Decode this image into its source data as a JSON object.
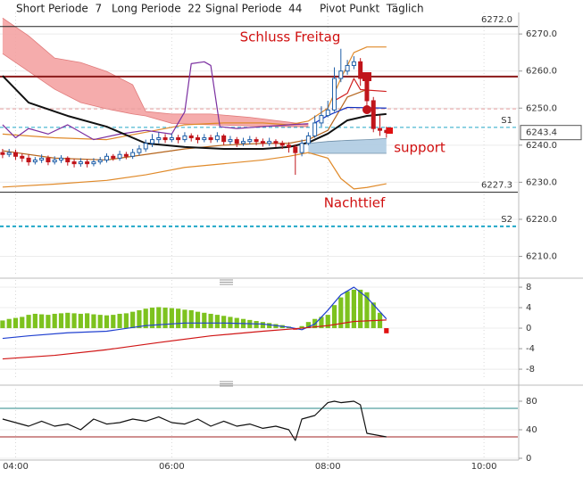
{
  "header": [
    "Short Periode  7",
    "Long Periode  22",
    "Signal Periode  44",
    "Pivot Punkt  Täglich"
  ],
  "chart_data": [
    {
      "type": "candlestick",
      "xlim": [
        "03:48",
        "10:26"
      ],
      "ylim": [
        6204.6,
        6275.8
      ],
      "grid": true,
      "xticks": [
        "04:00",
        "06:00",
        "08:00",
        "10:00"
      ],
      "yticks": [
        {
          "value": 6270,
          "label": "6270.0"
        },
        {
          "value": 6260,
          "label": "6260.0"
        },
        {
          "value": 6250,
          "label": "6250.0"
        },
        {
          "value": 6240,
          "label": "6240.0"
        },
        {
          "value": 6230,
          "label": "6230.0"
        },
        {
          "value": 6220,
          "label": "6220.0"
        },
        {
          "value": 6210,
          "label": "6210.0"
        }
      ],
      "up_color": "#1f5fa8",
      "down_color": "#c0151b",
      "x": [
        "03:50",
        "03:55",
        "04:00",
        "04:05",
        "04:10",
        "04:15",
        "04:20",
        "04:25",
        "04:30",
        "04:35",
        "04:40",
        "04:45",
        "04:50",
        "04:55",
        "05:00",
        "05:05",
        "05:10",
        "05:15",
        "05:20",
        "05:25",
        "05:30",
        "05:35",
        "05:40",
        "05:45",
        "05:50",
        "05:55",
        "06:00",
        "06:05",
        "06:10",
        "06:15",
        "06:20",
        "06:25",
        "06:30",
        "06:35",
        "06:40",
        "06:45",
        "06:50",
        "06:55",
        "07:00",
        "07:05",
        "07:10",
        "07:15",
        "07:20",
        "07:25",
        "07:30",
        "07:35",
        "07:40",
        "07:45",
        "07:50",
        "07:55",
        "08:00",
        "08:05",
        "08:10",
        "08:15",
        "08:20",
        "08:25",
        "08:30",
        "08:35",
        "08:40",
        "08:45"
      ],
      "open": [
        6238.0,
        6237.5,
        6238.0,
        6237.0,
        6236.5,
        6235.5,
        6236.0,
        6236.5,
        6235.5,
        6236.0,
        6236.5,
        6235.5,
        6235.0,
        6235.5,
        6235.0,
        6235.5,
        6236.0,
        6237.0,
        6236.5,
        6237.5,
        6237.0,
        6238.0,
        6239.0,
        6240.5,
        6241.5,
        6242.0,
        6241.5,
        6242.0,
        6241.5,
        6242.5,
        6242.0,
        6241.5,
        6242.0,
        6241.5,
        6242.5,
        6241.0,
        6241.5,
        6240.5,
        6241.0,
        6241.5,
        6241.0,
        6240.5,
        6241.0,
        6240.5,
        6240.0,
        6239.5,
        6238.0,
        6240.5,
        6242.5,
        6246.0,
        6248.0,
        6249.5,
        6258.0,
        6260.0,
        6261.5,
        6262.5,
        6258.0,
        6252.0,
        6244.5,
        6244.0
      ],
      "high": [
        6239.0,
        6239.0,
        6238.8,
        6237.8,
        6237.5,
        6236.8,
        6237.5,
        6237.2,
        6237.0,
        6237.3,
        6237.0,
        6236.3,
        6236.5,
        6236.2,
        6236.5,
        6236.8,
        6237.8,
        6237.6,
        6238.5,
        6238.2,
        6239.0,
        6240.0,
        6241.5,
        6243.0,
        6243.5,
        6243.0,
        6243.2,
        6242.8,
        6243.5,
        6243.2,
        6242.8,
        6243.0,
        6242.8,
        6243.5,
        6243.0,
        6242.5,
        6242.2,
        6242.0,
        6242.5,
        6242.2,
        6241.8,
        6242.0,
        6241.6,
        6241.2,
        6240.8,
        6240.2,
        6241.5,
        6243.5,
        6248.0,
        6250.5,
        6252.0,
        6261.0,
        6266.0,
        6263.0,
        6264.0,
        6263.5,
        6259.0,
        6253.0,
        6248.0,
        6245.0
      ],
      "low": [
        6236.5,
        6236.8,
        6236.0,
        6235.5,
        6234.5,
        6234.8,
        6235.2,
        6234.6,
        6234.8,
        6235.2,
        6234.5,
        6234.0,
        6234.2,
        6234.0,
        6234.3,
        6234.8,
        6235.3,
        6235.8,
        6235.8,
        6236.2,
        6236.3,
        6237.2,
        6238.2,
        6239.5,
        6240.5,
        6240.6,
        6240.8,
        6240.5,
        6240.8,
        6241.0,
        6240.5,
        6240.8,
        6240.6,
        6240.8,
        6240.0,
        6240.2,
        6239.5,
        6239.8,
        6240.2,
        6240.0,
        6239.6,
        6239.8,
        6239.5,
        6239.0,
        6238.0,
        6232.0,
        6237.0,
        6240.0,
        6242.0,
        6245.0,
        6247.5,
        6249.0,
        6257.0,
        6259.0,
        6260.5,
        6256.0,
        6250.0,
        6243.5,
        6242.5,
        6242.0
      ],
      "close": [
        6237.5,
        6238.0,
        6237.0,
        6236.5,
        6235.5,
        6236.0,
        6236.5,
        6235.5,
        6236.0,
        6236.5,
        6235.5,
        6235.0,
        6235.5,
        6235.0,
        6235.5,
        6236.0,
        6237.0,
        6236.5,
        6237.5,
        6237.0,
        6238.0,
        6239.0,
        6240.5,
        6241.5,
        6242.0,
        6241.5,
        6242.0,
        6241.5,
        6242.5,
        6242.0,
        6241.5,
        6242.0,
        6241.5,
        6242.5,
        6241.0,
        6241.5,
        6240.5,
        6241.0,
        6241.5,
        6241.0,
        6240.5,
        6241.0,
        6240.5,
        6240.0,
        6239.5,
        6238.0,
        6240.5,
        6242.5,
        6246.0,
        6248.0,
        6249.5,
        6258.0,
        6260.0,
        6261.5,
        6262.5,
        6258.0,
        6252.0,
        6244.5,
        6244.0,
        6243.4
      ],
      "clouds": [
        {
          "color": "#f4a3a3",
          "edge_color": "#e07a7a",
          "x": [
            "03:50",
            "04:10",
            "04:30",
            "04:50",
            "05:10",
            "05:30",
            "05:40",
            "06:00",
            "06:30",
            "07:00",
            "07:30",
            "07:45"
          ],
          "upper": [
            6274.3,
            6269.5,
            6263.5,
            6262.3,
            6259.9,
            6256.3,
            6249.1,
            6248.4,
            6248.4,
            6247.5,
            6246.2,
            6245.5
          ],
          "lower": [
            6264.7,
            6259.9,
            6255.1,
            6251.5,
            6249.8,
            6248.4,
            6247.9,
            6245.9,
            6245.5,
            6245.2,
            6245.0,
            6245.0
          ]
        },
        {
          "color": "#aecbe2",
          "edge_color": "#6f8fa8",
          "x": [
            "07:45",
            "08:00",
            "08:15",
            "08:30",
            "08:45"
          ],
          "upper": [
            6240.5,
            6241.0,
            6241.3,
            6241.5,
            6241.8
          ],
          "lower": [
            6237.8,
            6237.8,
            6237.8,
            6237.8,
            6237.8
          ]
        }
      ],
      "series": [
        {
          "color": "#e08a2a",
          "x": [
            "03:50",
            "04:30",
            "05:10",
            "05:40",
            "06:10",
            "06:40",
            "07:10",
            "07:30",
            "07:45",
            "08:00",
            "08:10",
            "08:20",
            "08:30",
            "08:45"
          ],
          "values": [
            6243.0,
            6242.0,
            6241.5,
            6243.5,
            6245.5,
            6246.0,
            6246.0,
            6245.5,
            6246.5,
            6250.0,
            6258.0,
            6265.0,
            6266.5,
            6266.5
          ]
        },
        {
          "color": "#e08a2a",
          "x": [
            "03:50",
            "04:30",
            "05:10",
            "05:40",
            "06:10",
            "06:40",
            "07:10",
            "07:30",
            "07:45",
            "08:00",
            "08:10",
            "08:20",
            "08:30",
            "08:45"
          ],
          "values": [
            6228.7,
            6229.5,
            6230.5,
            6232.0,
            6234.0,
            6235.0,
            6236.0,
            6237.0,
            6238.0,
            6236.5,
            6231.0,
            6228.2,
            6228.6,
            6229.6
          ]
        },
        {
          "color": "#b5651d",
          "x": [
            "03:50",
            "04:30",
            "05:10",
            "05:40",
            "06:10",
            "06:40",
            "07:10",
            "07:30",
            "07:45",
            "08:00",
            "08:15",
            "08:30"
          ],
          "values": [
            6238.5,
            6236.5,
            6236.0,
            6237.5,
            6239.0,
            6240.0,
            6240.5,
            6240.5,
            6241.5,
            6244.0,
            6253.0,
            6255.0
          ]
        },
        {
          "color": "#7b2fa0",
          "x": [
            "03:50",
            "04:00",
            "04:10",
            "04:25",
            "04:40",
            "05:00",
            "05:20",
            "05:40",
            "06:00",
            "06:10",
            "06:15",
            "06:25",
            "06:30",
            "06:37",
            "06:50",
            "07:10",
            "07:30",
            "07:45"
          ],
          "values": [
            6245.5,
            6242.0,
            6244.5,
            6243.0,
            6245.5,
            6241.5,
            6243.0,
            6244.0,
            6243.0,
            6249.0,
            6262.0,
            6262.5,
            6261.5,
            6245.0,
            6244.5,
            6245.0,
            6245.5,
            6245.8
          ]
        },
        {
          "color": "#d02020",
          "x": [
            "08:05",
            "08:15",
            "08:20",
            "08:25",
            "08:45"
          ],
          "values": [
            6252.0,
            6254.0,
            6258.0,
            6255.0,
            6254.5
          ]
        },
        {
          "color": "#1030c0",
          "x": [
            "07:50",
            "08:00",
            "08:15",
            "08:45"
          ],
          "values": [
            6246.0,
            6248.0,
            6250.2,
            6250.0
          ]
        },
        {
          "color": "#111111",
          "thick": true,
          "x": [
            "03:50",
            "04:10",
            "04:40",
            "05:10",
            "05:40",
            "06:10",
            "06:40",
            "07:10",
            "07:30",
            "07:45",
            "08:00",
            "08:15",
            "08:30",
            "08:45"
          ],
          "values": [
            6258.7,
            6251.5,
            6247.9,
            6245.0,
            6240.5,
            6239.5,
            6239.0,
            6239.0,
            6239.5,
            6240.7,
            6243.1,
            6246.7,
            6247.9,
            6248.4
          ]
        }
      ],
      "levels": [
        {
          "value": 6272,
          "label": "6272.0",
          "color": "#222222"
        },
        {
          "value": 6258.5,
          "color": "#8b1a1a",
          "thick": true,
          "text": "Schluss Freitag"
        },
        {
          "value": 6249.8,
          "color": "#e8a0a0",
          "dashed": true
        },
        {
          "value": 6244.8,
          "color": "#22a8c8",
          "dashed": true,
          "label": "S1"
        },
        {
          "value": 6227.3,
          "label": "6227.3",
          "color": "#222222",
          "text": "Nachttief"
        },
        {
          "value": 6218.1,
          "color": "#22a8c8",
          "dashed": true,
          "thick": true,
          "label": "S2"
        }
      ],
      "annotations": [
        "support"
      ],
      "last": 6243.4
    },
    {
      "type": "bar",
      "xlim": [
        "03:48",
        "10:26"
      ],
      "ylim": [
        -9.9,
        9.4
      ],
      "grid": true,
      "xticks": [
        "04:00",
        "06:00",
        "08:00",
        "10:00"
      ],
      "yticks": [
        8,
        4,
        0,
        -4,
        -8
      ],
      "histogram": {
        "color": "#7dc21e",
        "negative_color": "#e01010",
        "x": [
          "03:50",
          "03:55",
          "04:00",
          "04:05",
          "04:10",
          "04:15",
          "04:20",
          "04:25",
          "04:30",
          "04:35",
          "04:40",
          "04:45",
          "04:50",
          "04:55",
          "05:00",
          "05:05",
          "05:10",
          "05:15",
          "05:20",
          "05:25",
          "05:30",
          "05:35",
          "05:40",
          "05:45",
          "05:50",
          "05:55",
          "06:00",
          "06:05",
          "06:10",
          "06:15",
          "06:20",
          "06:25",
          "06:30",
          "06:35",
          "06:40",
          "06:45",
          "06:50",
          "06:55",
          "07:00",
          "07:05",
          "07:10",
          "07:15",
          "07:20",
          "07:25",
          "07:30",
          "07:35",
          "07:40",
          "07:45",
          "07:50",
          "07:55",
          "08:00",
          "08:05",
          "08:10",
          "08:15",
          "08:20",
          "08:25",
          "08:30",
          "08:35",
          "08:40",
          "08:45"
        ],
        "values": [
          1.5,
          1.8,
          2.0,
          2.2,
          2.6,
          2.8,
          2.7,
          2.6,
          2.8,
          2.9,
          3.0,
          2.9,
          2.8,
          2.9,
          2.7,
          2.6,
          2.5,
          2.6,
          2.8,
          2.9,
          3.2,
          3.5,
          3.8,
          4.0,
          4.1,
          4.0,
          3.9,
          3.8,
          3.6,
          3.5,
          3.2,
          3.0,
          2.8,
          2.6,
          2.4,
          2.2,
          2.0,
          1.8,
          1.6,
          1.4,
          1.2,
          1.0,
          0.8,
          0.6,
          0.3,
          -0.3,
          0.4,
          1.2,
          1.8,
          2.2,
          2.6,
          4.5,
          6.0,
          7.2,
          7.5,
          7.5,
          7.0,
          5.0,
          3.0,
          -1.0
        ]
      },
      "series": [
        {
          "color": "#2040d0",
          "x": [
            "03:50",
            "04:10",
            "04:40",
            "05:10",
            "05:40",
            "06:10",
            "06:40",
            "07:10",
            "07:30",
            "07:40",
            "07:50",
            "08:00",
            "08:10",
            "08:20",
            "08:30",
            "08:45"
          ],
          "values": [
            -2.0,
            -1.5,
            -0.9,
            -0.6,
            0.5,
            1.0,
            1.0,
            0.8,
            0.2,
            -0.3,
            0.8,
            3.5,
            6.5,
            8.0,
            6.0,
            1.8
          ]
        },
        {
          "color": "#d01515",
          "x": [
            "03:50",
            "04:30",
            "05:10",
            "05:50",
            "06:30",
            "07:10",
            "07:40",
            "08:00",
            "08:20",
            "08:45"
          ],
          "values": [
            -6.0,
            -5.3,
            -4.2,
            -2.8,
            -1.5,
            -0.6,
            0,
            0.5,
            1.3,
            1.6
          ]
        }
      ]
    },
    {
      "type": "line",
      "xlim": [
        "03:48",
        "10:26"
      ],
      "ylim": [
        -2.5,
        97.5
      ],
      "grid": true,
      "xticks": [
        "04:00",
        "06:00",
        "08:00",
        "10:00"
      ],
      "yticks": [
        80,
        40,
        0
      ],
      "levels": [
        {
          "value": 70,
          "color": "#2a8a8a"
        },
        {
          "value": 30,
          "color": "#a02020"
        }
      ],
      "series": [
        {
          "color": "#111111",
          "x": [
            "03:50",
            "04:00",
            "04:10",
            "04:20",
            "04:30",
            "04:40",
            "04:50",
            "05:00",
            "05:10",
            "05:20",
            "05:30",
            "05:40",
            "05:50",
            "06:00",
            "06:10",
            "06:20",
            "06:30",
            "06:40",
            "06:50",
            "07:00",
            "07:10",
            "07:20",
            "07:30",
            "07:35",
            "07:40",
            "07:50",
            "08:00",
            "08:05",
            "08:10",
            "08:20",
            "08:25",
            "08:30",
            "08:45"
          ],
          "values": [
            55,
            50,
            45,
            52,
            45,
            48,
            40,
            55,
            48,
            50,
            55,
            52,
            58,
            50,
            48,
            55,
            45,
            52,
            45,
            48,
            42,
            45,
            40,
            25,
            55,
            60,
            78,
            80,
            78,
            80,
            75,
            35,
            30
          ]
        }
      ]
    }
  ]
}
